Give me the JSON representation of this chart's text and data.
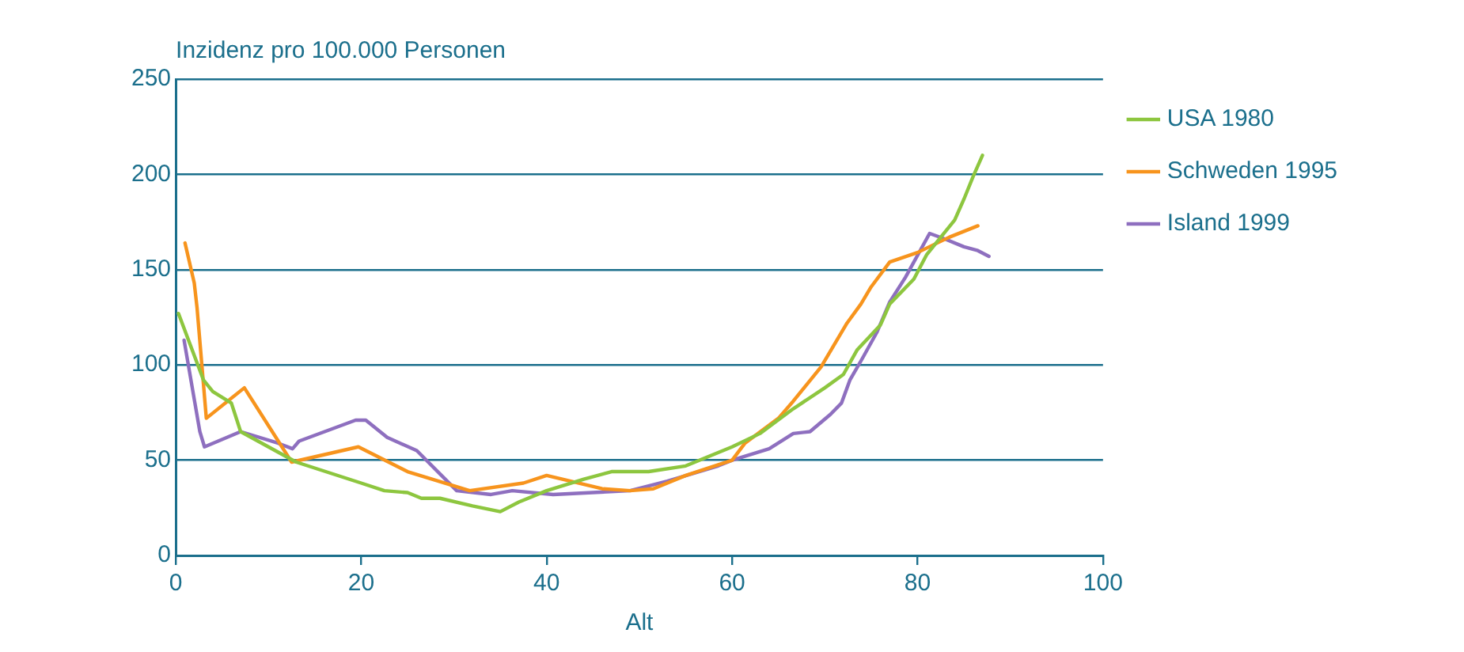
{
  "chart_data": {
    "type": "line",
    "xlabel": "Alt",
    "ylabel": "Inzidenz pro 100.000 Personen",
    "xlim": [
      0,
      100
    ],
    "xticks": [
      0,
      20,
      40,
      60,
      80,
      100
    ],
    "ylim": [
      0,
      250
    ],
    "yticks": [
      0,
      50,
      100,
      150,
      200,
      250
    ],
    "grid": "y",
    "legend": "top right",
    "marker": "none",
    "line_style": "solid",
    "series": [
      {
        "name": "USA 1980",
        "color": "#8dc63f",
        "x": [
          0.3,
          3,
          4,
          6,
          7,
          13,
          20,
          22.5,
          25,
          26.5,
          28.5,
          32,
          35,
          37,
          40,
          44,
          47,
          51,
          55,
          60,
          63,
          66.6,
          70,
          72,
          73.5,
          76,
          77,
          79.6,
          81,
          84,
          85,
          86,
          87
        ],
        "values": [
          127,
          92,
          86,
          80,
          65,
          49,
          38,
          34,
          33,
          30,
          30,
          26,
          23,
          28,
          34,
          40,
          44,
          44,
          47,
          57,
          64,
          77,
          88,
          95,
          108,
          121,
          132,
          145,
          158,
          176,
          187,
          199,
          210
        ]
      },
      {
        "name": "Schweden 1995",
        "color": "#f7941d",
        "x": [
          1,
          2,
          2.3,
          3.3,
          7.4,
          12.5,
          19.7,
          25,
          31.7,
          37.5,
          40,
          46,
          49,
          51.5,
          55,
          60,
          61.4,
          65,
          66.6,
          69.6,
          72.4,
          73.9,
          75,
          77,
          80,
          83.4,
          86.5
        ],
        "values": [
          164,
          143,
          130,
          72,
          88,
          49,
          57,
          44,
          34,
          38,
          42,
          35,
          34,
          35,
          42,
          50,
          59,
          72,
          81,
          99,
          122,
          132,
          141,
          154,
          159,
          167,
          173
        ]
      },
      {
        "name": "Island 1999",
        "color": "#8e6fbf",
        "x": [
          0.9,
          2.6,
          3.1,
          7,
          11,
          12.6,
          13.3,
          19.4,
          20.5,
          22.8,
          26,
          30.3,
          34,
          36.3,
          40.7,
          49,
          53,
          58.5,
          60,
          64,
          66.6,
          68.4,
          70.6,
          71.8,
          72.7,
          74,
          75.6,
          77,
          78.7,
          81.3,
          83,
          85,
          86.5,
          87.7
        ],
        "values": [
          113,
          65,
          57,
          65,
          59,
          56,
          60,
          71,
          71,
          62,
          55,
          34,
          32,
          34,
          32,
          34,
          39,
          47,
          50,
          56,
          64,
          65,
          74,
          80,
          92,
          103,
          117,
          133,
          146,
          169,
          166,
          162,
          160,
          157
        ]
      }
    ]
  }
}
